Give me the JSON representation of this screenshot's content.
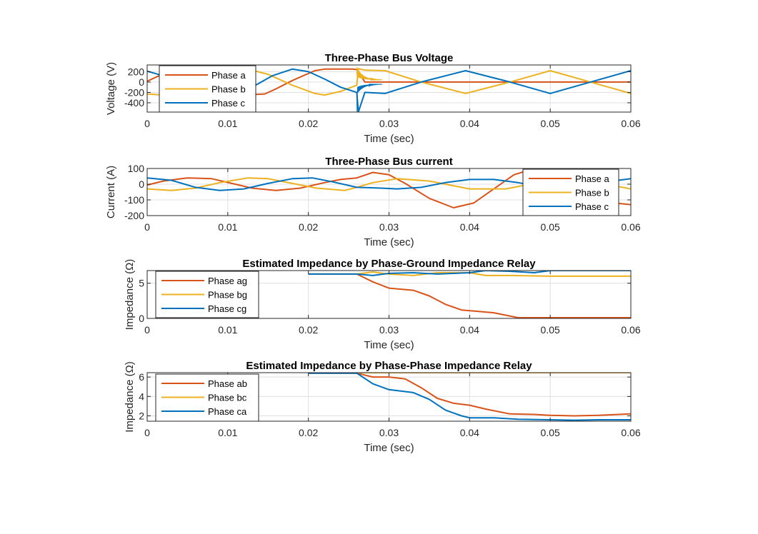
{
  "figure": {
    "background": "#ffffff"
  },
  "colors": {
    "phase1": "#D95319",
    "phase2": "#EDB120",
    "phase3": "#0072BD",
    "grid": "#dfdfdf",
    "axis": "#262626"
  },
  "chart_data": [
    {
      "type": "line",
      "title": "Three-Phase Bus Voltage",
      "xlabel": "Time (sec)",
      "ylabel": "Voltage (V)",
      "xlim": [
        0,
        0.06
      ],
      "ylim": [
        -580,
        330
      ],
      "xticks": [
        0,
        0.01,
        0.02,
        0.03,
        0.04,
        0.05,
        0.06
      ],
      "xtick_labels": [
        "0",
        "0.01",
        "0.02",
        "0.03",
        "0.04",
        "0.05",
        "0.06"
      ],
      "yticks": [
        200,
        0,
        -200,
        -400
      ],
      "ytick_labels": [
        "200",
        "0",
        "-200",
        "-400"
      ],
      "grid": true,
      "legend": {
        "location": "top-left",
        "entries": [
          "Phase a",
          "Phase b",
          "Phase c"
        ]
      },
      "fault_time": 0.026,
      "series": [
        {
          "name": "Phase a",
          "color": "#D95319",
          "x": [
            0,
            0.002,
            0.0042,
            0.006,
            0.008,
            0.0104,
            0.012,
            0.0146,
            0.016,
            0.018,
            0.0208,
            0.022,
            0.024,
            0.0255,
            0.026,
            0.027,
            0.03,
            0.04,
            0.05,
            0.06
          ],
          "y": [
            15,
            160,
            250,
            200,
            60,
            -150,
            -250,
            -230,
            -130,
            30,
            220,
            250,
            250,
            250,
            240,
            0,
            0,
            0,
            0,
            0
          ]
        },
        {
          "name": "Phase b",
          "color": "#EDB120",
          "x": [
            0,
            0.002,
            0.005,
            0.008,
            0.011,
            0.0125,
            0.015,
            0.018,
            0.0208,
            0.022,
            0.024,
            0.026,
            0.0262,
            0.027,
            0.0295,
            0.034,
            0.0395,
            0.045,
            0.05,
            0.055,
            0.06
          ],
          "y": [
            -230,
            -250,
            -100,
            100,
            240,
            250,
            150,
            -60,
            -220,
            -250,
            -180,
            -60,
            260,
            230,
            220,
            0,
            -220,
            0,
            220,
            0,
            -220
          ]
        },
        {
          "name": "Phase c",
          "color": "#0072BD",
          "x": [
            0,
            0.002,
            0.005,
            0.0075,
            0.01,
            0.013,
            0.0155,
            0.018,
            0.02,
            0.022,
            0.024,
            0.026,
            0.0262,
            0.027,
            0.0295,
            0.034,
            0.0395,
            0.045,
            0.05,
            0.055,
            0.06
          ],
          "y": [
            210,
            120,
            -80,
            -230,
            -250,
            -100,
            120,
            250,
            200,
            60,
            -100,
            -200,
            -580,
            -200,
            -220,
            0,
            220,
            0,
            -220,
            0,
            220
          ]
        }
      ]
    },
    {
      "type": "line",
      "title": "Three-Phase Bus current",
      "xlabel": "Time (sec)",
      "ylabel": "Current (A)",
      "xlim": [
        0,
        0.06
      ],
      "ylim": [
        -200,
        100
      ],
      "xticks": [
        0,
        0.01,
        0.02,
        0.03,
        0.04,
        0.05,
        0.06
      ],
      "xtick_labels": [
        "0",
        "0.01",
        "0.02",
        "0.03",
        "0.04",
        "0.05",
        "0.06"
      ],
      "yticks": [
        100,
        0,
        -100,
        -200
      ],
      "ytick_labels": [
        "100",
        "0",
        "-100",
        "-200"
      ],
      "grid": true,
      "legend": {
        "location": "bottom-right",
        "entries": [
          "Phase a",
          "Phase b",
          "Phase c"
        ]
      },
      "series": [
        {
          "name": "Phase a",
          "color": "#D95319",
          "x": [
            0,
            0.002,
            0.005,
            0.008,
            0.0105,
            0.013,
            0.016,
            0.019,
            0.022,
            0.024,
            0.026,
            0.028,
            0.03,
            0.032,
            0.035,
            0.038,
            0.0405,
            0.043,
            0.0455,
            0.048,
            0.0505,
            0.053,
            0.056,
            0.058,
            0.06
          ],
          "y": [
            -5,
            20,
            40,
            35,
            5,
            -25,
            -40,
            -25,
            10,
            30,
            40,
            75,
            60,
            5,
            -90,
            -150,
            -120,
            -30,
            60,
            100,
            80,
            10,
            -80,
            -120,
            -130
          ]
        },
        {
          "name": "Phase b",
          "color": "#EDB120",
          "x": [
            0,
            0.003,
            0.006,
            0.009,
            0.0125,
            0.015,
            0.018,
            0.021,
            0.0245,
            0.026,
            0.028,
            0.031,
            0.035,
            0.04,
            0.0445,
            0.048,
            0.052,
            0.055,
            0.058,
            0.06
          ],
          "y": [
            -30,
            -40,
            -25,
            10,
            40,
            35,
            5,
            -25,
            -40,
            -20,
            10,
            35,
            20,
            -30,
            -30,
            5,
            35,
            20,
            -10,
            -30
          ]
        },
        {
          "name": "Phase c",
          "color": "#0072BD",
          "x": [
            0,
            0.003,
            0.006,
            0.009,
            0.012,
            0.015,
            0.018,
            0.0205,
            0.023,
            0.026,
            0.029,
            0.031,
            0.034,
            0.037,
            0.04,
            0.043,
            0.046,
            0.05,
            0.054,
            0.057,
            0.06
          ],
          "y": [
            40,
            25,
            -20,
            -40,
            -30,
            5,
            35,
            40,
            15,
            -20,
            -25,
            -30,
            -20,
            10,
            30,
            30,
            10,
            -25,
            -20,
            15,
            35
          ]
        }
      ]
    },
    {
      "type": "line",
      "title": "Estimated Impedance by Phase-Ground Impedance Relay",
      "xlabel": "Time (sec)",
      "ylabel": "Impedance (Ω)",
      "xlim": [
        0,
        0.06
      ],
      "ylim": [
        0,
        6.8
      ],
      "xticks": [
        0,
        0.01,
        0.02,
        0.03,
        0.04,
        0.05,
        0.06
      ],
      "xtick_labels": [
        "0",
        "0.01",
        "0.02",
        "0.03",
        "0.04",
        "0.05",
        "0.06"
      ],
      "yticks": [
        5,
        0
      ],
      "ytick_labels": [
        "5",
        "0"
      ],
      "grid": true,
      "legend": {
        "location": "top-left",
        "entries": [
          "Phase ag",
          "Phase bg",
          "Phase cg"
        ]
      },
      "series": [
        {
          "name": "Phase ag",
          "color": "#D95319",
          "x": [
            0.02,
            0.026,
            0.028,
            0.03,
            0.033,
            0.035,
            0.037,
            0.039,
            0.041,
            0.043,
            0.046,
            0.05,
            0.06
          ],
          "y": [
            6.3,
            6.3,
            5.2,
            4.3,
            4.0,
            3.2,
            2.0,
            1.2,
            1.0,
            0.8,
            0.1,
            0.1,
            0.1
          ]
        },
        {
          "name": "Phase bg",
          "color": "#EDB120",
          "x": [
            0.02,
            0.026,
            0.028,
            0.03,
            0.033,
            0.036,
            0.04,
            0.042,
            0.045,
            0.05,
            0.06
          ],
          "y": [
            6.3,
            6.3,
            6.6,
            6.3,
            6.1,
            6.5,
            6.5,
            6.1,
            6.1,
            6.0,
            6.0
          ]
        },
        {
          "name": "Phase cg",
          "color": "#0072BD",
          "x": [
            0.02,
            0.026,
            0.028,
            0.03,
            0.033,
            0.036,
            0.04,
            0.042,
            0.045,
            0.048,
            0.05,
            0.06
          ],
          "y": [
            6.3,
            6.3,
            6.1,
            6.4,
            6.5,
            6.3,
            6.5,
            6.8,
            6.7,
            6.5,
            6.8,
            6.8
          ]
        }
      ]
    },
    {
      "type": "line",
      "title": "Estimated Impedance by Phase-Phase Impedance Relay",
      "xlabel": "Time (sec)",
      "ylabel": "Impedance (Ω)",
      "xlim": [
        0,
        0.06
      ],
      "ylim": [
        1.45,
        6.45
      ],
      "xticks": [
        0,
        0.01,
        0.02,
        0.03,
        0.04,
        0.05,
        0.06
      ],
      "xtick_labels": [
        "0",
        "0.01",
        "0.02",
        "0.03",
        "0.04",
        "0.05",
        "0.06"
      ],
      "yticks": [
        6,
        4,
        2
      ],
      "ytick_labels": [
        "6",
        "4",
        "2"
      ],
      "grid": true,
      "legend": {
        "location": "top-left",
        "entries": [
          "Phase ab",
          "Phase bc",
          "Phase ca"
        ]
      },
      "series": [
        {
          "name": "Phase ab",
          "color": "#D95319",
          "x": [
            0.02,
            0.026,
            0.028,
            0.03,
            0.032,
            0.034,
            0.036,
            0.038,
            0.04,
            0.042,
            0.045,
            0.048,
            0.05,
            0.053,
            0.056,
            0.06
          ],
          "y": [
            6.4,
            6.4,
            6.0,
            6.0,
            5.8,
            4.9,
            3.8,
            3.3,
            3.1,
            2.7,
            2.2,
            2.15,
            2.05,
            2.0,
            2.05,
            2.2
          ]
        },
        {
          "name": "Phase bc",
          "color": "#EDB120",
          "x": [
            0.02,
            0.03,
            0.04,
            0.05,
            0.06
          ],
          "y": [
            6.45,
            6.45,
            6.45,
            6.45,
            6.45
          ]
        },
        {
          "name": "Phase ca",
          "color": "#0072BD",
          "x": [
            0.02,
            0.026,
            0.028,
            0.03,
            0.033,
            0.035,
            0.037,
            0.039,
            0.04,
            0.043,
            0.046,
            0.05,
            0.053,
            0.056,
            0.06
          ],
          "y": [
            6.4,
            6.4,
            5.3,
            4.7,
            4.4,
            3.7,
            2.6,
            2.0,
            1.8,
            1.8,
            1.65,
            1.6,
            1.55,
            1.6,
            1.6
          ]
        }
      ]
    }
  ]
}
